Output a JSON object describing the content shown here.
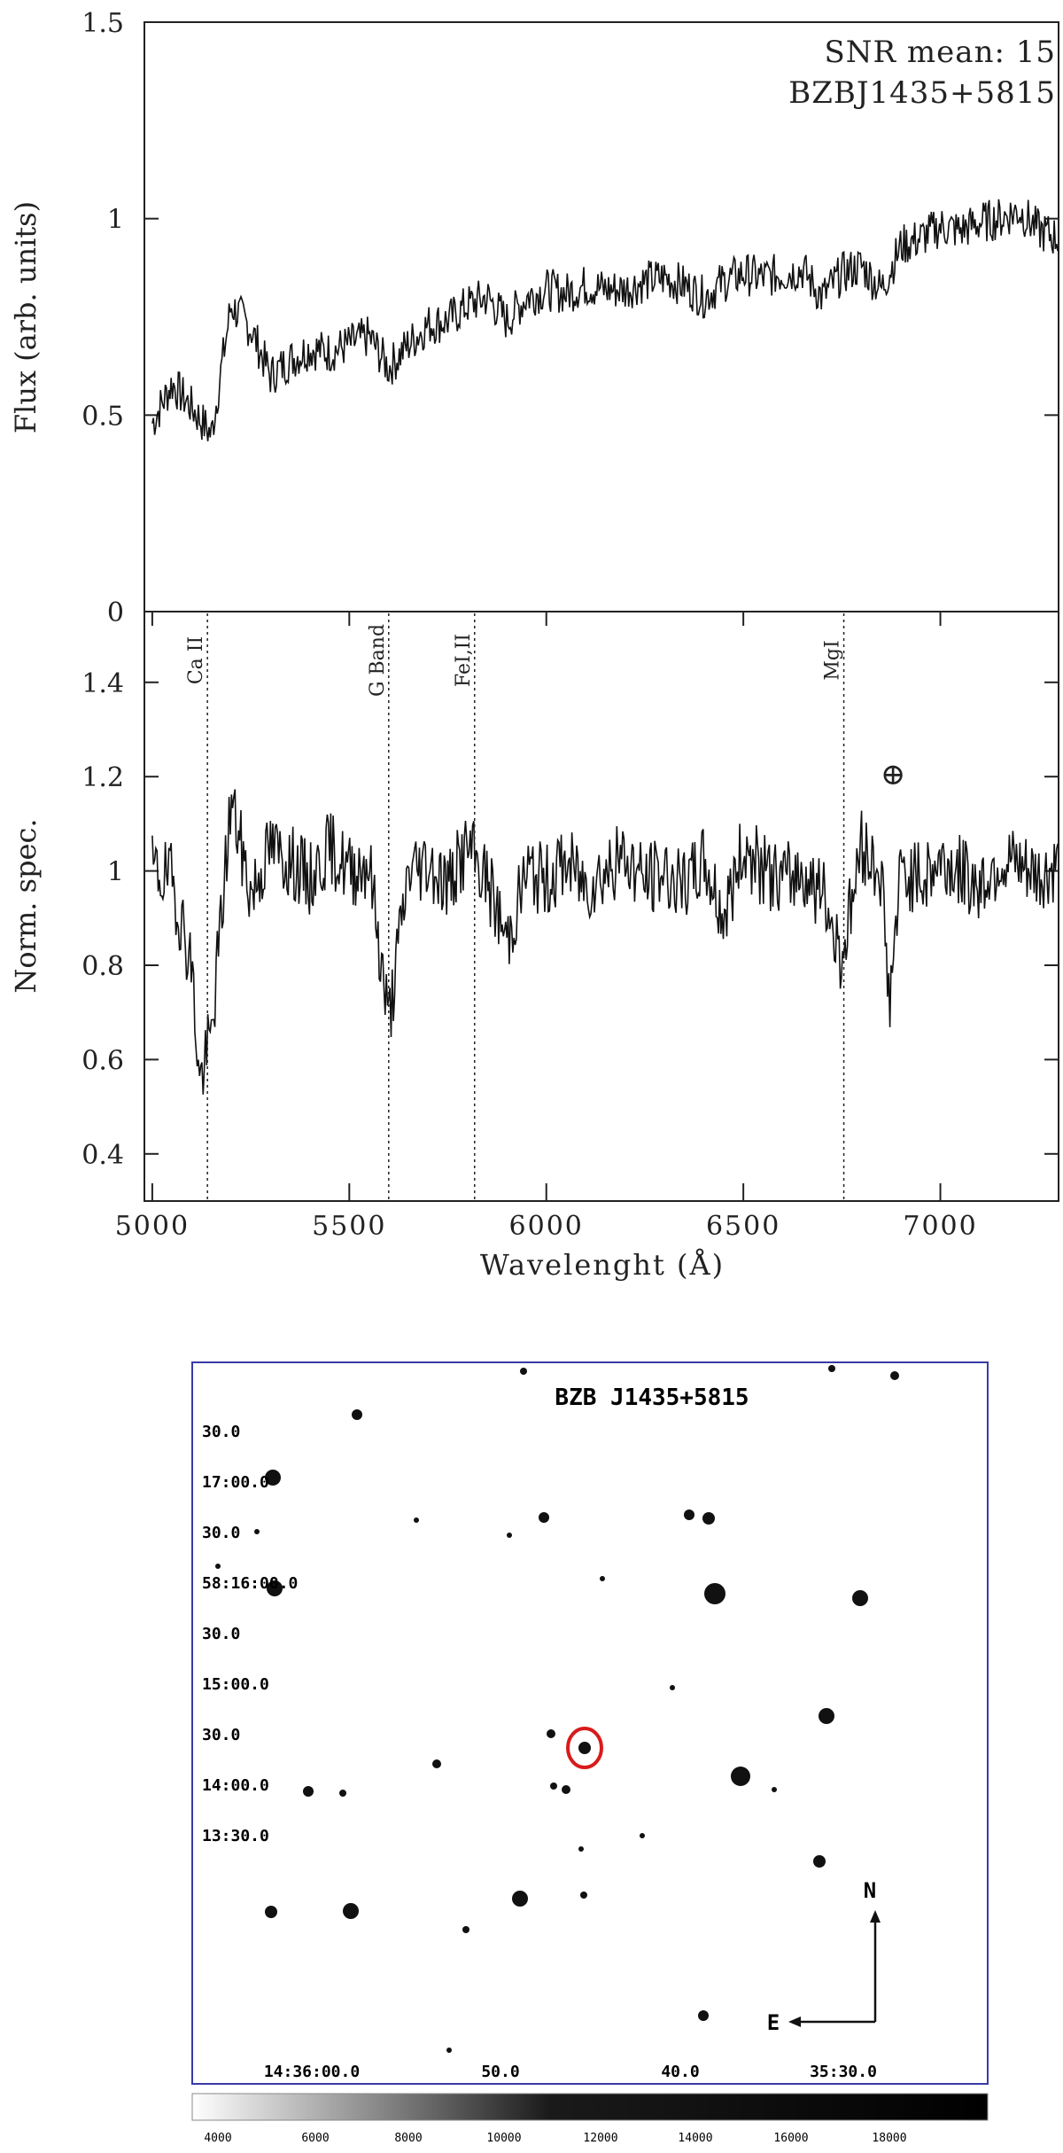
{
  "chart_data": [
    {
      "type": "line",
      "panel": "top",
      "annotations": [
        "SNR mean: 15",
        "BZBJ1435+5815"
      ],
      "xlabel": "",
      "ylabel": "Flux (arb. units)",
      "xlim": [
        4980,
        7300
      ],
      "ylim": [
        0,
        1.5
      ],
      "yticks": [
        0,
        0.5,
        1,
        1.5
      ],
      "ytick_labels": [
        "0",
        "0.5",
        "1",
        "1.5"
      ],
      "x": [
        5000,
        5050,
        5100,
        5150,
        5200,
        5250,
        5300,
        5350,
        5400,
        5450,
        5500,
        5550,
        5600,
        5650,
        5700,
        5750,
        5800,
        5850,
        5900,
        5950,
        6000,
        6050,
        6100,
        6150,
        6200,
        6250,
        6300,
        6350,
        6400,
        6450,
        6500,
        6550,
        6600,
        6650,
        6700,
        6750,
        6800,
        6850,
        6900,
        6950,
        7000,
        7050,
        7100,
        7150,
        7200,
        7250,
        7300
      ],
      "y": [
        0.48,
        0.58,
        0.52,
        0.45,
        0.78,
        0.72,
        0.6,
        0.64,
        0.67,
        0.66,
        0.68,
        0.7,
        0.62,
        0.68,
        0.73,
        0.74,
        0.78,
        0.8,
        0.74,
        0.8,
        0.82,
        0.81,
        0.83,
        0.82,
        0.82,
        0.84,
        0.85,
        0.83,
        0.8,
        0.84,
        0.86,
        0.85,
        0.86,
        0.87,
        0.8,
        0.86,
        0.88,
        0.82,
        0.93,
        0.95,
        0.98,
        0.97,
        0.99,
        1.0,
        1.02,
        0.97,
        0.95
      ],
      "grid": false
    },
    {
      "type": "line",
      "panel": "bottom",
      "xlabel": "Wavelenght (Å)",
      "ylabel": "Norm. spec.",
      "xlim": [
        4980,
        7300
      ],
      "ylim": [
        0.3,
        1.55
      ],
      "xticks": [
        5000,
        5500,
        6000,
        6500,
        7000
      ],
      "xtick_labels": [
        "5000",
        "5500",
        "6000",
        "6500",
        "7000"
      ],
      "yticks": [
        0.4,
        0.6,
        0.8,
        1,
        1.2,
        1.4
      ],
      "ytick_labels": [
        "0.4",
        "0.6",
        "0.8",
        "1",
        "1.2",
        "1.4"
      ],
      "x": [
        5000,
        5050,
        5100,
        5120,
        5150,
        5200,
        5250,
        5300,
        5350,
        5400,
        5450,
        5500,
        5550,
        5600,
        5650,
        5700,
        5750,
        5800,
        5850,
        5900,
        5950,
        6000,
        6050,
        6100,
        6150,
        6200,
        6250,
        6300,
        6350,
        6400,
        6450,
        6500,
        6550,
        6600,
        6650,
        6700,
        6750,
        6800,
        6850,
        6870,
        6900,
        6950,
        7000,
        7050,
        7100,
        7150,
        7200,
        7250,
        7300
      ],
      "y": [
        1.0,
        0.98,
        0.8,
        0.55,
        0.65,
        1.15,
        0.95,
        1.05,
        1.02,
        0.98,
        1.05,
        1.0,
        1.02,
        0.68,
        1.0,
        1.02,
        0.97,
        1.05,
        0.98,
        0.85,
        1.0,
        0.98,
        1.02,
        0.97,
        1.0,
        1.03,
        0.98,
        1.0,
        0.96,
        1.02,
        0.9,
        1.05,
        1.0,
        0.98,
        1.0,
        0.95,
        0.82,
        1.05,
        1.0,
        0.72,
        1.0,
        0.98,
        1.02,
        1.0,
        0.97,
        1.02,
        1.0,
        0.98,
        1.0
      ],
      "lines": [
        {
          "label": "Ca II",
          "x": 5140
        },
        {
          "label": "G Band",
          "x": 5600
        },
        {
          "label": "FeI,II",
          "x": 5818
        },
        {
          "label": "MgI",
          "x": 6755
        }
      ],
      "telluric_symbol": "⊕",
      "telluric_x": 6880,
      "grid": false
    }
  ],
  "finder": {
    "title": "BZB J1435+5815",
    "ra_labels": [
      "14:36:00.0",
      "50.0",
      "40.0",
      "35:30.0"
    ],
    "dec_labels": [
      "30.0",
      "17:00.0",
      "30.0",
      "58:16:00.0",
      "30.0",
      "15:00.0",
      "30.0",
      "14:00.0",
      "13:30.0"
    ],
    "compass_n": "N",
    "compass_e": "E",
    "marker_color": "#d81b1b",
    "frame_color": "#3a3aa8",
    "colorbar_labels": [
      "4000",
      "6000",
      "8000",
      "10000",
      "12000",
      "14000",
      "16000",
      "18000"
    ]
  }
}
